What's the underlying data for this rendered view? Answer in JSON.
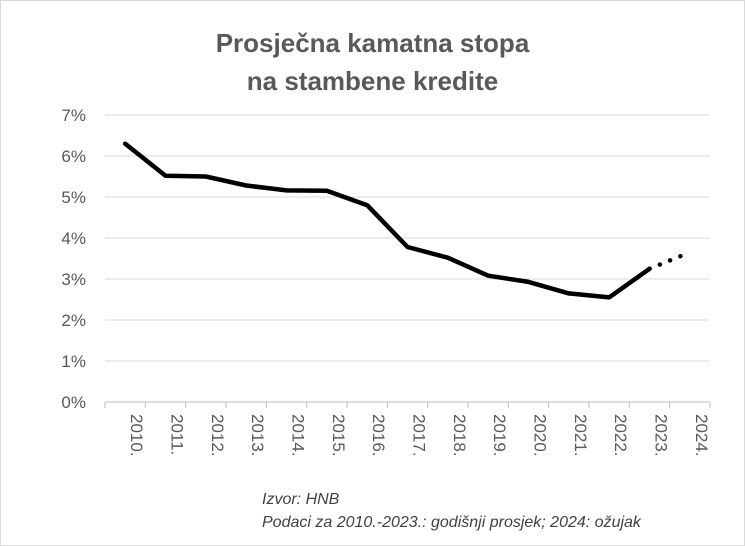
{
  "chart_data": {
    "type": "line",
    "title_lines": [
      "Prosječna kamatna stopa",
      "na stambene kredite"
    ],
    "xlabel": "",
    "ylabel": "",
    "categories": [
      "2010.",
      "2011.",
      "2012.",
      "2013.",
      "2014.",
      "2015.",
      "2016.",
      "2017.",
      "2018.",
      "2019.",
      "2020.",
      "2021.",
      "2022.",
      "2023.",
      "2024."
    ],
    "series": [
      {
        "values": [
          6.3,
          5.52,
          5.5,
          5.28,
          5.16,
          5.15,
          4.8,
          3.78,
          3.52,
          3.08,
          2.93,
          2.65,
          2.55,
          3.25,
          3.65
        ],
        "solid_through_index": 13,
        "dotted_from_index": 13
      }
    ],
    "ylim": [
      0,
      7
    ],
    "yticks": [
      0,
      1,
      2,
      3,
      4,
      5,
      6,
      7
    ],
    "ytick_labels": [
      "0%",
      "1%",
      "2%",
      "3%",
      "4%",
      "5%",
      "6%",
      "7%"
    ],
    "grid": true,
    "legend": "none",
    "line_color": "#000000",
    "grid_color": "#d9d9d9"
  },
  "notes": {
    "source": "Izvor: HNB",
    "detail": "Podaci za 2010.-2023.: godišnji prosjek; 2024: ožujak"
  }
}
